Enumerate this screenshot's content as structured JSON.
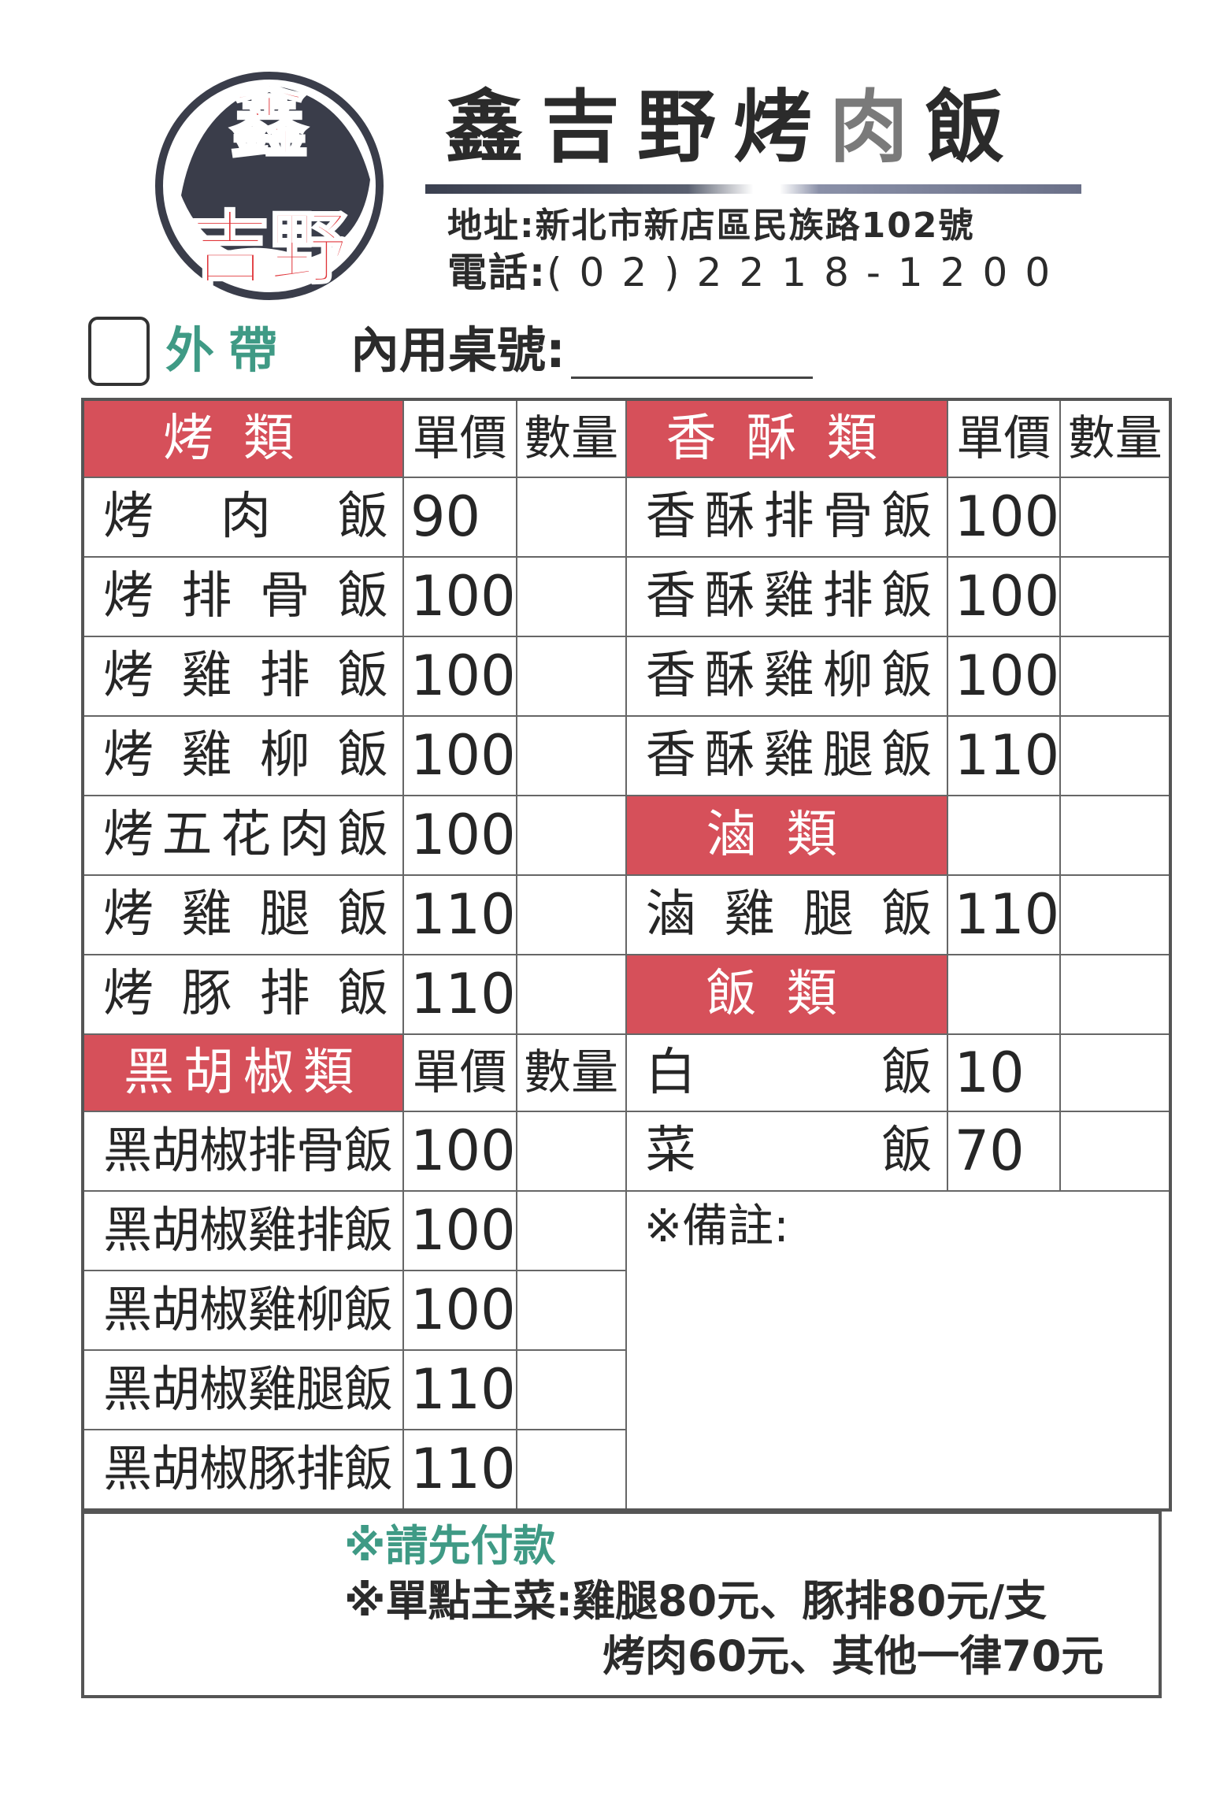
{
  "logo": {
    "text_top": "鑫",
    "text_bottom": "吉野",
    "ring_color": "#3a3d4a",
    "text_color": "#e0353a"
  },
  "header": {
    "title_main": "鑫吉野烤",
    "title_gray": "肉",
    "title_end": "飯",
    "address_label": "地址:",
    "address": "新北市新店區民族路102號",
    "phone_label": "電話:",
    "phone": "(02)2218-1200"
  },
  "order_type": {
    "takeout_label": "外帶",
    "dine_in_label": "內用桌號:",
    "table_number": ""
  },
  "colors": {
    "category_bg": "#d6505a",
    "note_green": "#3f9a85"
  },
  "menu": {
    "price_header": "單價",
    "qty_header": "數量",
    "left": [
      {
        "type": "category",
        "label": "烤類"
      },
      {
        "type": "item",
        "name": "烤肉飯",
        "price": "90"
      },
      {
        "type": "item",
        "name": "烤排骨飯",
        "price": "100"
      },
      {
        "type": "item",
        "name": "烤雞排飯",
        "price": "100"
      },
      {
        "type": "item",
        "name": "烤雞柳飯",
        "price": "100"
      },
      {
        "type": "item",
        "name": "烤五花肉飯",
        "price": "100"
      },
      {
        "type": "item",
        "name": "烤雞腿飯",
        "price": "110"
      },
      {
        "type": "item",
        "name": "烤豚排飯",
        "price": "110"
      },
      {
        "type": "category",
        "label": "黑胡椒類"
      },
      {
        "type": "item",
        "name": "黑胡椒排骨飯",
        "price": "100"
      },
      {
        "type": "item",
        "name": "黑胡椒雞排飯",
        "price": "100"
      },
      {
        "type": "item",
        "name": "黑胡椒雞柳飯",
        "price": "100"
      },
      {
        "type": "item",
        "name": "黑胡椒雞腿飯",
        "price": "110"
      },
      {
        "type": "item",
        "name": "黑胡椒豚排飯",
        "price": "110"
      }
    ],
    "right": [
      {
        "type": "category",
        "label": "香酥類",
        "with_headers": true
      },
      {
        "type": "item",
        "name": "香酥排骨飯",
        "price": "100"
      },
      {
        "type": "item",
        "name": "香酥雞排飯",
        "price": "100"
      },
      {
        "type": "item",
        "name": "香酥雞柳飯",
        "price": "100"
      },
      {
        "type": "item",
        "name": "香酥雞腿飯",
        "price": "110"
      },
      {
        "type": "category",
        "label": "滷類",
        "with_headers": false
      },
      {
        "type": "item",
        "name": "滷雞腿飯",
        "price": "110"
      },
      {
        "type": "category",
        "label": "飯類",
        "with_headers": false
      },
      {
        "type": "item",
        "name": "白飯",
        "price": "10",
        "wide": true
      },
      {
        "type": "item",
        "name": "菜飯",
        "price": "70",
        "wide": true
      },
      {
        "type": "remark",
        "label": "※備註:"
      }
    ]
  },
  "footer": {
    "pay_first": "※請先付款",
    "single_line1": "※單點主菜:雞腿80元、豚排80元/支",
    "single_line2": "烤肉60元、其他一律70元"
  }
}
